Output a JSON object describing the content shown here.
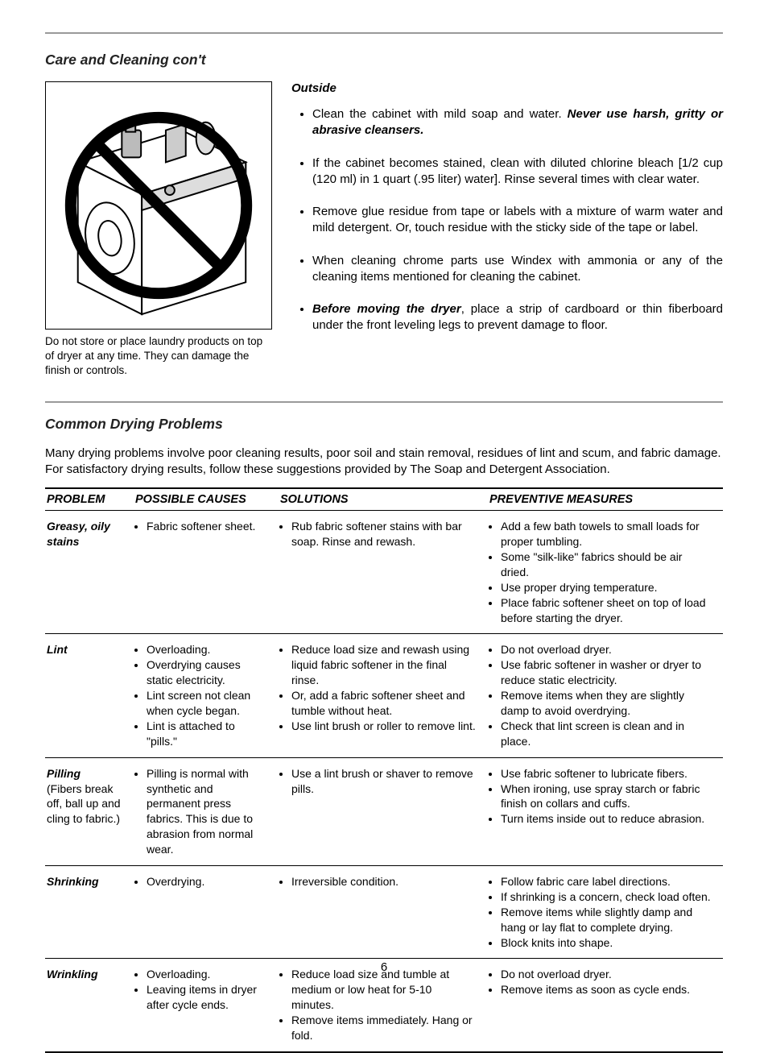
{
  "page_number": "6",
  "hr_color": "#9a9a9a",
  "section1": {
    "heading": "Care and Cleaning con't",
    "figure_caption": "Do not store or place laundry products on top of dryer at any time. They can damage the finish or controls.",
    "subhead": "Outside",
    "bullets": [
      {
        "pre": "Clean the cabinet with mild soap and water. ",
        "strong": "Never use harsh, gritty or abrasive cleansers.",
        "post": ""
      },
      {
        "pre": "If the cabinet becomes stained, clean with diluted chlorine bleach [1/2 cup (120 ml) in 1 quart (.95 liter) water]. Rinse several times with clear water.",
        "strong": "",
        "post": ""
      },
      {
        "pre": "Remove glue residue from tape or labels with a mixture of warm water and mild detergent. Or, touch residue with the sticky side of the tape or label.",
        "strong": "",
        "post": ""
      },
      {
        "pre": "When cleaning chrome parts use Windex with ammonia or any of the cleaning items mentioned for cleaning the cabinet.",
        "strong": "",
        "post": ""
      },
      {
        "pre": "",
        "strong": "Before moving the dryer",
        "post": ", place a strip of cardboard or thin fiberboard under the  front leveling legs to prevent damage to floor."
      }
    ]
  },
  "section2": {
    "heading": "Common Drying Problems",
    "intro": "Many drying problems involve poor cleaning results, poor soil and stain removal, residues of lint and scum, and fabric damage. For satisfactory drying results, follow these suggestions provided by The Soap and Detergent Association.",
    "headers": {
      "c1": "PROBLEM",
      "c2": "POSSIBLE CAUSES",
      "c3": "SOLUTIONS",
      "c4": "PREVENTIVE MEASURES"
    },
    "rows": [
      {
        "problem": "Greasy, oily stains",
        "sub": "",
        "causes": [
          "Fabric softener sheet."
        ],
        "solutions": [
          "Rub fabric softener stains with bar soap. Rinse and rewash."
        ],
        "prevent": [
          "Add a few bath towels to small loads for proper tumbling.",
          "Some \"silk-like\" fabrics should be air dried.",
          "Use proper drying temperature.",
          "Place fabric softener sheet on top of load before starting the dryer."
        ]
      },
      {
        "problem": "Lint",
        "sub": "",
        "causes": [
          "Overloading.",
          "Overdrying causes static electricity.",
          "Lint screen not clean when cycle began.",
          "Lint is attached to \"pills.\""
        ],
        "solutions": [
          "Reduce load size and rewash using liquid fabric softener in the final rinse.",
          "Or, add a fabric softener sheet and tumble without heat.",
          "Use lint brush or roller to remove lint."
        ],
        "prevent": [
          "Do not overload dryer.",
          "Use fabric softener in washer or dryer to reduce static electricity.",
          "Remove items when they are slightly damp to avoid overdrying.",
          "Check that lint screen is clean and in place."
        ]
      },
      {
        "problem": "Pilling",
        "sub": "(Fibers break off, ball up and cling to fabric.)",
        "causes": [
          "Pilling is normal with synthetic and permanent press fabrics. This is due to abrasion from normal wear."
        ],
        "solutions": [
          "Use a lint brush or shaver to remove pills."
        ],
        "prevent": [
          "Use fabric softener to lubricate fibers.",
          "When ironing, use spray starch or fabric finish on collars and cuffs.",
          "Turn items inside out to reduce abrasion."
        ]
      },
      {
        "problem": "Shrinking",
        "sub": "",
        "causes": [
          "Overdrying."
        ],
        "solutions": [
          "Irreversible condition."
        ],
        "prevent": [
          "Follow fabric care label directions.",
          "If shrinking is a concern, check load often.",
          "Remove items while slightly damp and hang or lay flat to complete drying.",
          "Block knits into shape."
        ]
      },
      {
        "problem": "Wrinkling",
        "sub": "",
        "causes": [
          "Overloading.",
          "Leaving items in dryer after cycle ends."
        ],
        "solutions": [
          "Reduce load size and tumble at medium or low heat for 5-10 minutes.",
          "Remove items immediately. Hang or fold."
        ],
        "prevent": [
          "Do not overload dryer.",
          "Remove items as soon as cycle ends."
        ]
      }
    ]
  }
}
